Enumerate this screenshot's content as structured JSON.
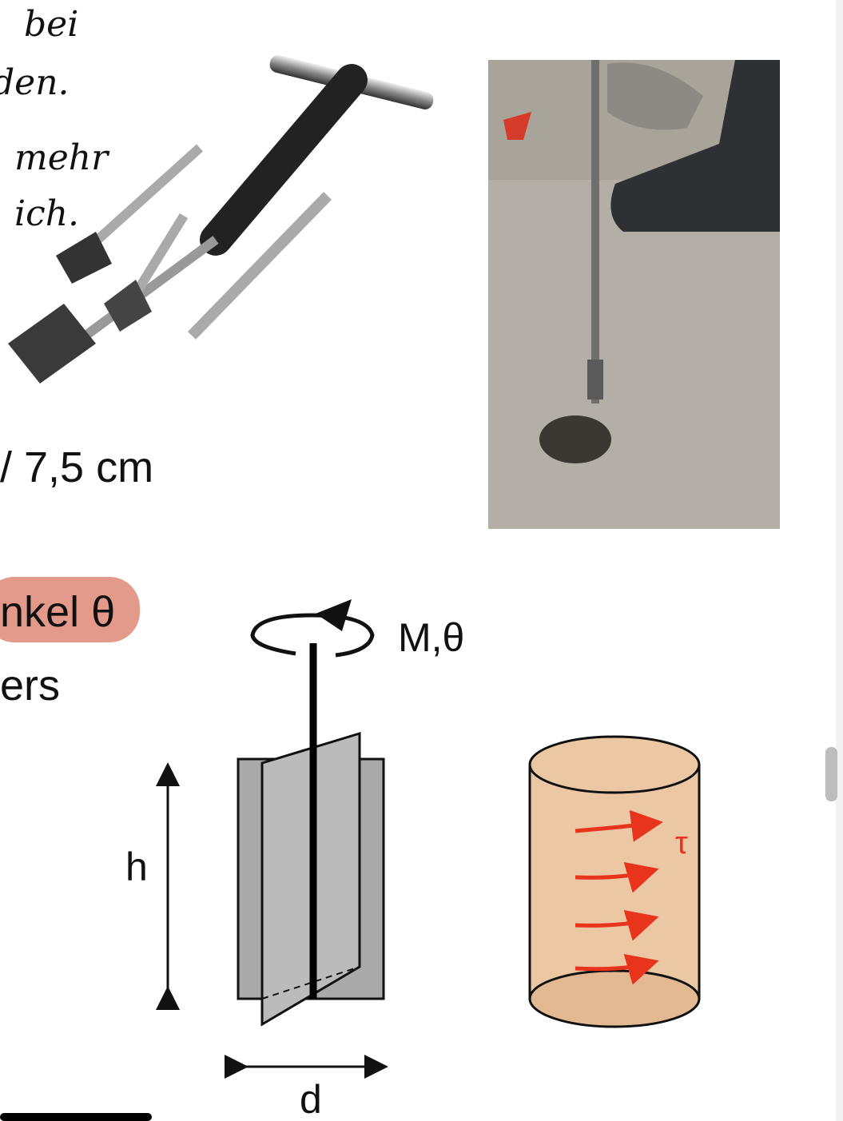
{
  "handwriting": [
    "bei",
    "den.",
    "mehr",
    "ich."
  ],
  "text": {
    "size": "/ 7,5 cm",
    "highlight": "nkel θ",
    "line2": "ers"
  },
  "diagram": {
    "moment": "M,θ",
    "height": "h",
    "diameter": "d",
    "shear": "τ"
  }
}
